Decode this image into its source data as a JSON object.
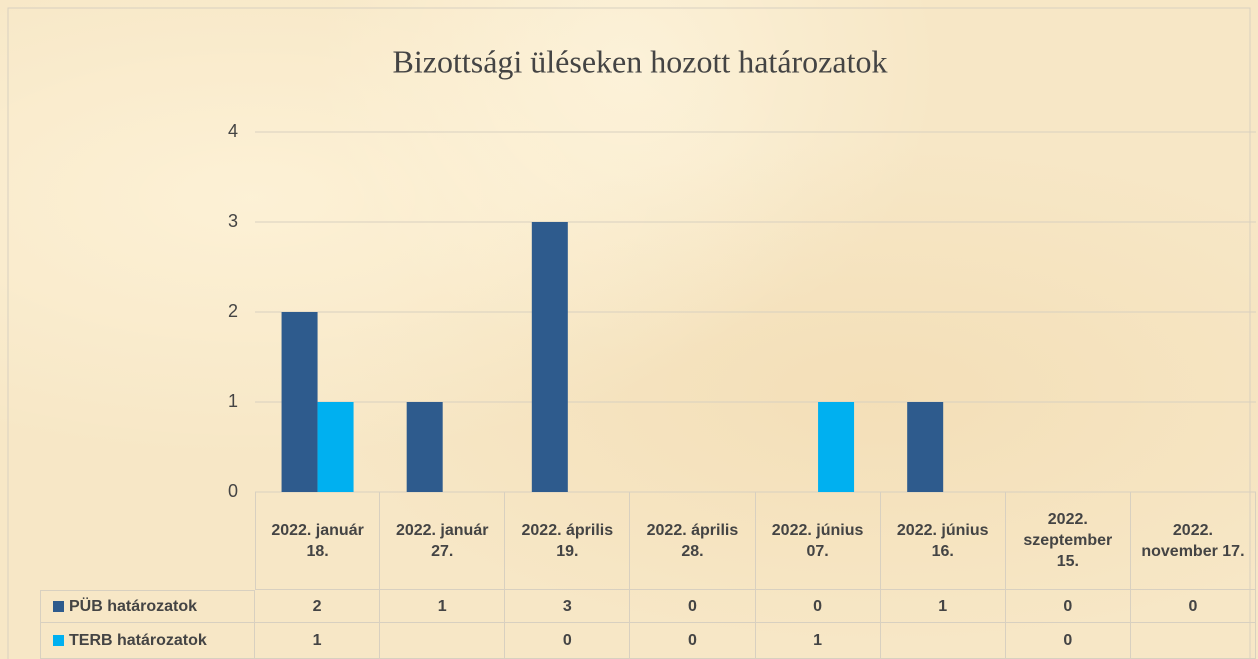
{
  "chart_data": {
    "type": "bar",
    "title": "Bizottsági üléseken hozott határozatok",
    "categories": [
      "2022. január 18.",
      "2022. január 27.",
      "2022. április 19.",
      "2022. április 28.",
      "2022. június 07.",
      "2022. június 16.",
      "2022. szeptember 15.",
      "2022. november 17."
    ],
    "series": [
      {
        "name": "PÜB határozatok",
        "color": "#2e5b8d",
        "values": [
          2,
          1,
          3,
          0,
          0,
          1,
          0,
          0
        ]
      },
      {
        "name": "TERB határozatok",
        "color": "#00b0f0",
        "values": [
          1,
          null,
          0,
          0,
          1,
          null,
          0,
          null
        ]
      }
    ],
    "ylim": [
      0,
      4
    ],
    "yticks": [
      0,
      1,
      2,
      3,
      4
    ],
    "grid": true,
    "legend": "data-table"
  }
}
